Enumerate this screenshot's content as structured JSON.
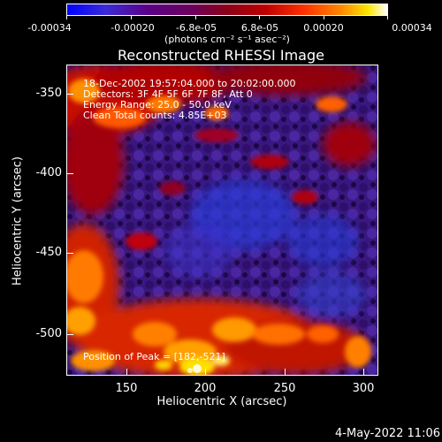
{
  "colorbar": {
    "labels": [
      "-0.00034",
      "-0.00020",
      "-6.8e-05",
      "6.8e-05",
      "0.00020",
      "0.00034"
    ],
    "units": "(photons cm⁻² s⁻¹ asec⁻²)"
  },
  "title": "Reconstructed RHESSI Image",
  "annotations": {
    "time": "18-Dec-2002 19:57:04.000 to 20:02:00.000",
    "detectors": "Detectors: 3F 4F 5F 6F 7F 8F, Att 0",
    "energy": "Energy Range: 25.0 - 50.0 keV",
    "clean": "Clean     Total counts: 4.85E+03",
    "peak": "Position of Peak = [182,-521]"
  },
  "x_axis": {
    "label": "Heliocentric X (arcsec)",
    "ticks": [
      "150",
      "200",
      "250",
      "300"
    ]
  },
  "y_axis": {
    "label": "Heliocentric Y (arcsec)",
    "ticks": [
      "-350",
      "-400",
      "-450",
      "-500"
    ]
  },
  "date_stamp": "4-May-2022 11:06",
  "colors": {
    "low": "#0000ff",
    "mid": "#6a0060",
    "high": "#ffe600",
    "peak": "#ffffff"
  }
}
